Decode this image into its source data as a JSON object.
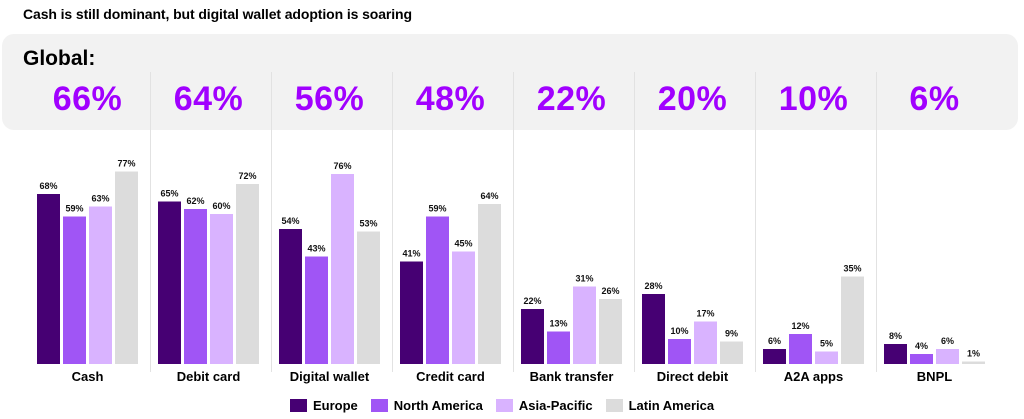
{
  "header": {
    "title": "Cash is still dominant, but digital wallet adoption is soaring",
    "global_label": "Global:"
  },
  "colors": {
    "Europe": "#460073",
    "North America": "#a055f5",
    "Asia-Pacific": "#d9b3ff",
    "Latin America": "#dcdcdc",
    "accent": "#a100ff",
    "panel": "#f2f2f2"
  },
  "chart_data": {
    "type": "bar",
    "title": "Cash is still dominant, but digital wallet adoption is soaring",
    "xlabel": "",
    "ylabel": "",
    "ylim": [
      0,
      100
    ],
    "grid": false,
    "legend_position": "bottom-center",
    "categories": [
      "Cash",
      "Debit card",
      "Digital wallet",
      "Credit card",
      "Bank transfer",
      "Direct debit",
      "A2A apps",
      "BNPL"
    ],
    "global": [
      "66%",
      "64%",
      "56%",
      "48%",
      "22%",
      "20%",
      "10%",
      "6%"
    ],
    "series": [
      {
        "name": "Europe",
        "values": [
          68,
          65,
          54,
          41,
          22,
          28,
          6,
          8
        ]
      },
      {
        "name": "North America",
        "values": [
          59,
          62,
          43,
          59,
          13,
          10,
          12,
          4
        ]
      },
      {
        "name": "Asia-Pacific",
        "values": [
          63,
          60,
          76,
          45,
          31,
          17,
          5,
          6
        ]
      },
      {
        "name": "Latin America",
        "values": [
          77,
          72,
          53,
          64,
          26,
          9,
          35,
          1
        ]
      }
    ]
  },
  "legend": [
    "Europe",
    "North America",
    "Asia-Pacific",
    "Latin America"
  ]
}
